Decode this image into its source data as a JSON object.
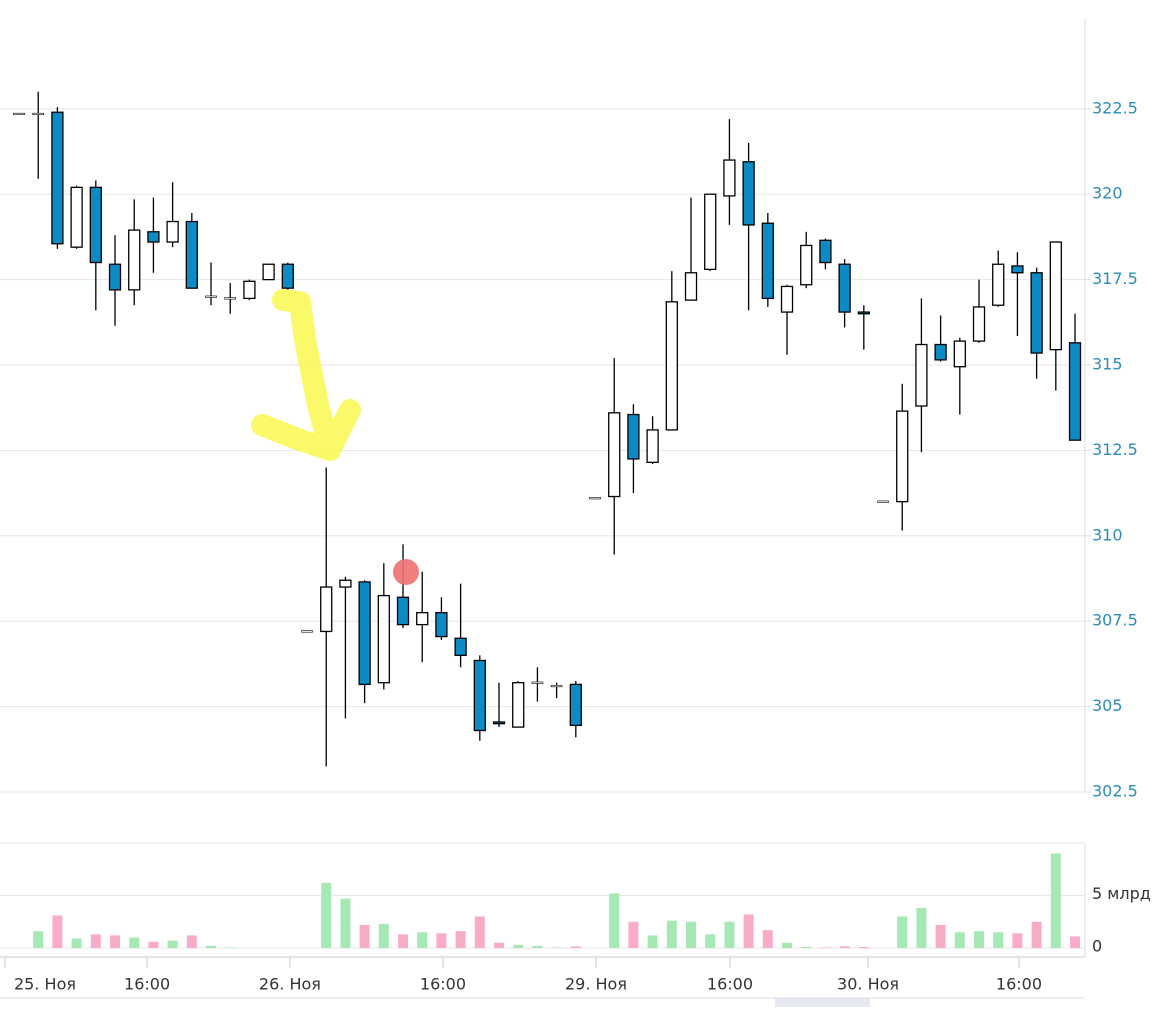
{
  "chart_data": {
    "type": "candlestick",
    "open": [
      322.35,
      322.35,
      322.4,
      318.45,
      320.2,
      317.95,
      317.2,
      318.9,
      318.6,
      319.2,
      317.0,
      316.95,
      316.95,
      317.5,
      317.95,
      307.2,
      307.2,
      308.5,
      308.65,
      305.7,
      308.2,
      307.4,
      307.75,
      307.0,
      306.35,
      304.55,
      304.4,
      305.7,
      305.6,
      305.65,
      311.1,
      311.15,
      313.55,
      312.15,
      313.1,
      316.9,
      317.8,
      319.95,
      320.95,
      319.15,
      316.55,
      317.35,
      318.65,
      317.95,
      316.55,
      311.0,
      311.0,
      313.8,
      315.6,
      314.95,
      315.7,
      316.75,
      317.9,
      317.7,
      315.45,
      315.65
    ],
    "high": [
      322.35,
      323.0,
      322.55,
      320.25,
      320.4,
      318.8,
      319.85,
      319.9,
      320.35,
      319.45,
      318.0,
      317.4,
      317.5,
      317.95,
      318.0,
      307.2,
      312.0,
      308.8,
      308.7,
      309.2,
      309.75,
      308.95,
      308.2,
      308.6,
      306.5,
      305.7,
      305.75,
      306.15,
      305.7,
      305.75,
      311.1,
      315.2,
      313.85,
      313.5,
      317.75,
      319.9,
      320.0,
      322.2,
      321.5,
      319.45,
      317.35,
      318.9,
      318.7,
      318.1,
      316.75,
      311.0,
      314.45,
      316.95,
      316.45,
      315.8,
      317.5,
      318.35,
      318.3,
      317.85,
      318.6,
      316.5
    ],
    "low": [
      322.35,
      320.45,
      318.4,
      318.4,
      316.6,
      316.15,
      316.75,
      317.7,
      318.45,
      317.25,
      316.75,
      316.5,
      316.9,
      317.5,
      317.2,
      307.2,
      303.25,
      304.65,
      305.1,
      305.5,
      307.3,
      306.3,
      306.95,
      306.15,
      304.0,
      304.4,
      304.4,
      305.15,
      305.25,
      304.1,
      311.1,
      309.45,
      311.25,
      312.1,
      313.1,
      316.9,
      317.75,
      319.1,
      316.6,
      316.7,
      315.3,
      317.25,
      317.8,
      316.1,
      315.45,
      311.0,
      310.15,
      312.45,
      315.1,
      313.55,
      315.65,
      316.7,
      315.85,
      314.6,
      314.25,
      312.8
    ],
    "close": [
      322.35,
      322.35,
      318.55,
      320.2,
      318.0,
      317.2,
      318.95,
      318.6,
      319.2,
      317.25,
      317.0,
      316.95,
      317.45,
      317.95,
      317.25,
      307.2,
      308.5,
      308.7,
      305.65,
      308.25,
      307.4,
      307.75,
      307.05,
      306.5,
      304.3,
      304.5,
      305.7,
      305.7,
      305.6,
      304.45,
      311.1,
      313.6,
      312.25,
      313.1,
      316.85,
      317.7,
      320.0,
      321.0,
      319.1,
      316.95,
      317.3,
      318.5,
      318.0,
      316.55,
      316.5,
      311.0,
      313.65,
      315.6,
      315.15,
      315.7,
      316.7,
      317.95,
      317.7,
      315.35,
      318.6,
      312.8
    ],
    "volume": [
      0,
      1.6,
      3.1,
      0.9,
      1.3,
      1.2,
      1.0,
      0.6,
      0.7,
      1.2,
      0.2,
      0.05,
      0,
      0,
      0,
      0,
      6.2,
      4.7,
      2.2,
      2.3,
      1.3,
      1.5,
      1.4,
      1.6,
      3.0,
      0.5,
      0.3,
      0.2,
      0.05,
      0.15,
      0,
      5.2,
      2.5,
      1.2,
      2.6,
      2.5,
      1.3,
      2.5,
      3.2,
      1.7,
      0.5,
      0.1,
      0.05,
      0.15,
      0.1,
      0,
      3.0,
      3.8,
      2.2,
      1.5,
      1.6,
      1.5,
      1.4,
      2.5,
      9.0,
      1.1
    ],
    "up_color": "#ffffff",
    "down_color": "#0b8bc6",
    "volume_up_color": "#a6e8b4",
    "volume_down_color": "#f9acc9",
    "ylim": [
      302.5,
      325.1
    ],
    "yticks": [
      302.5,
      305,
      307.5,
      310,
      312.5,
      315,
      317.5,
      320,
      322.5
    ],
    "volume_ylim": [
      0,
      10
    ],
    "volume_yticks": [
      0,
      {
        "value": 5,
        "label": "5 млрд"
      }
    ],
    "xlim": [
      -0.73,
      55.52
    ],
    "xticks": [
      {
        "value": -0.73,
        "label": "25. Ноя"
      },
      {
        "value": 6.67,
        "label": "16:00"
      },
      {
        "value": 14.11,
        "label": "26. Ноя"
      },
      {
        "value": 22.08,
        "label": "16:00"
      },
      {
        "value": 30.05,
        "label": "29. Ноя"
      },
      {
        "value": 37.03,
        "label": "16:00"
      },
      {
        "value": 44.22,
        "label": "30. Ноя"
      },
      {
        "value": 52.08,
        "label": "16:00"
      }
    ],
    "grid": true
  }
}
